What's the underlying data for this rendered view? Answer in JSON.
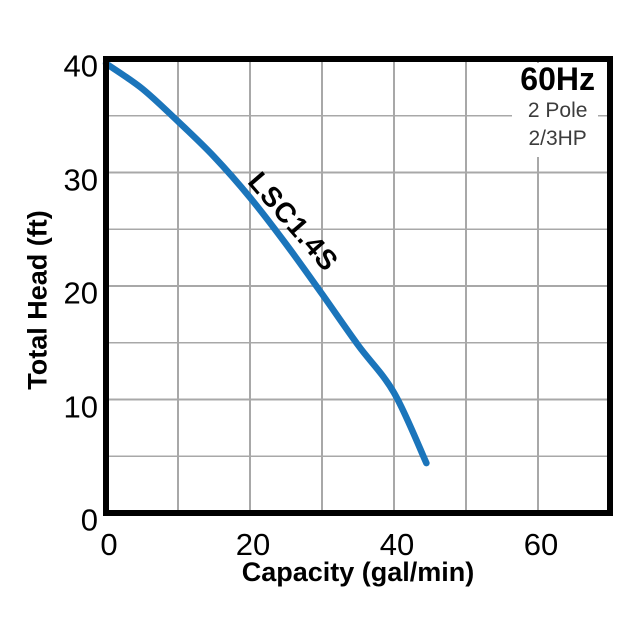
{
  "header_info": {
    "frequency": "60Hz",
    "pole": "2 Pole",
    "power": "2/3HP"
  },
  "chart_data": {
    "type": "line",
    "title": "",
    "xlabel": "Capacity (gal/min)",
    "ylabel": "Total Head (ft)",
    "xlim": [
      0,
      70
    ],
    "ylim": [
      0,
      40
    ],
    "x_ticks": [
      0,
      20,
      40,
      60
    ],
    "y_ticks": [
      0,
      10,
      20,
      30,
      40
    ],
    "x_grid_step": 10,
    "y_grid_step": 5,
    "grid": true,
    "legend_position": "none",
    "series": [
      {
        "name": "LSC1.4S",
        "color": "#1b75bb",
        "points": [
          [
            0,
            39.6
          ],
          [
            5,
            37.4
          ],
          [
            10,
            34.5
          ],
          [
            15,
            31.4
          ],
          [
            20,
            27.8
          ],
          [
            25,
            23.7
          ],
          [
            30,
            19.3
          ],
          [
            35,
            14.8
          ],
          [
            40,
            10.6
          ],
          [
            44.5,
            4.4
          ]
        ]
      }
    ]
  },
  "colors": {
    "curve": "#1b75bb",
    "grid": "#a8a8a8",
    "axis_frame": "#000000",
    "secondary_text": "#3c3c3c"
  }
}
